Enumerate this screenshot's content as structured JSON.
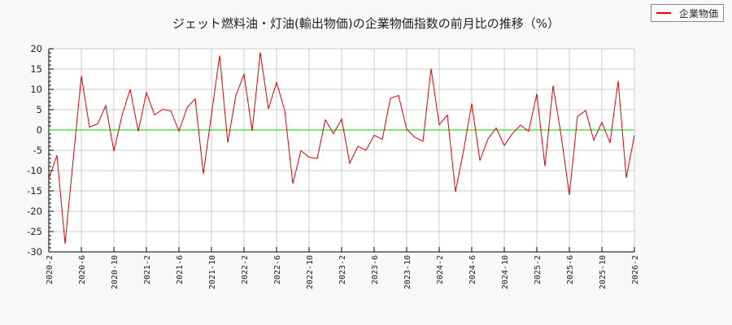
{
  "chart_data": {
    "type": "line",
    "title": "ジェット燃料油・灯油(輸出物価)の企業物価指数の前月比の推移（%）",
    "xlabel": "",
    "ylabel": "",
    "ylim": [
      -30,
      20
    ],
    "yticks": [
      20,
      15,
      10,
      5,
      0,
      -5,
      -10,
      -15,
      -20,
      -25,
      -30
    ],
    "xticks": [
      "2020-2",
      "2020-6",
      "2020-10",
      "2021-2",
      "2021-6",
      "2021-10",
      "2022-2",
      "2022-6",
      "2022-10",
      "2023-2",
      "2023-6",
      "2023-10",
      "2024-2",
      "2024-6",
      "2024-10",
      "2025-2",
      "2025-6",
      "2025-10",
      "2026-2"
    ],
    "grid": true,
    "legend_position": "top-right",
    "reference_line": {
      "y": 0,
      "color": "#00cc00"
    },
    "x": [
      "2020-2",
      "2020-3",
      "2020-4",
      "2020-5",
      "2020-6",
      "2020-7",
      "2020-8",
      "2020-9",
      "2020-10",
      "2020-11",
      "2020-12",
      "2021-1",
      "2021-2",
      "2021-3",
      "2021-4",
      "2021-5",
      "2021-6",
      "2021-7",
      "2021-8",
      "2021-9",
      "2021-10",
      "2021-11",
      "2021-12",
      "2022-1",
      "2022-2",
      "2022-3",
      "2022-4",
      "2022-5",
      "2022-6",
      "2022-7",
      "2022-8",
      "2022-9",
      "2022-10",
      "2022-11",
      "2022-12",
      "2023-1",
      "2023-2",
      "2023-3",
      "2023-4",
      "2023-5",
      "2023-6",
      "2023-7",
      "2023-8",
      "2023-9",
      "2023-10",
      "2023-11",
      "2023-12",
      "2024-1",
      "2024-2",
      "2024-3",
      "2024-4",
      "2024-5",
      "2024-6",
      "2024-7",
      "2024-8",
      "2024-9",
      "2024-10",
      "2024-11",
      "2024-12",
      "2025-1",
      "2025-2",
      "2025-3",
      "2025-4",
      "2025-5",
      "2025-6",
      "2025-7",
      "2025-8",
      "2025-9",
      "2025-10",
      "2025-11",
      "2025-12",
      "2026-1",
      "2026-2"
    ],
    "series": [
      {
        "name": "企業物価",
        "color": "#dd0000",
        "values": [
          -12.0,
          -6.2,
          -28.0,
          -7.2,
          13.3,
          0.7,
          1.5,
          6.0,
          -5.2,
          3.6,
          10.0,
          -0.3,
          9.2,
          3.7,
          5.1,
          4.7,
          -0.3,
          5.5,
          7.7,
          -10.8,
          3.8,
          18.3,
          -3.1,
          8.5,
          13.7,
          -0.2,
          19.1,
          5.2,
          11.7,
          4.8,
          -13.2,
          -5.1,
          -6.7,
          -7.0,
          2.5,
          -0.9,
          2.7,
          -8.2,
          -4.0,
          -5.0,
          -1.3,
          -2.3,
          7.8,
          8.5,
          0.2,
          -1.8,
          -2.8,
          15.1,
          1.3,
          3.7,
          -15.2,
          -5.0,
          6.5,
          -7.5,
          -2.2,
          0.5,
          -3.8,
          -0.9,
          1.2,
          -0.3,
          8.9,
          -8.9,
          10.9,
          -1.5,
          -16.0,
          3.3,
          4.8,
          -2.5,
          1.9,
          -3.2,
          12.1,
          -11.8,
          -1.3
        ]
      }
    ]
  },
  "legend": {
    "label": "企業物価",
    "color": "#dd0000"
  }
}
